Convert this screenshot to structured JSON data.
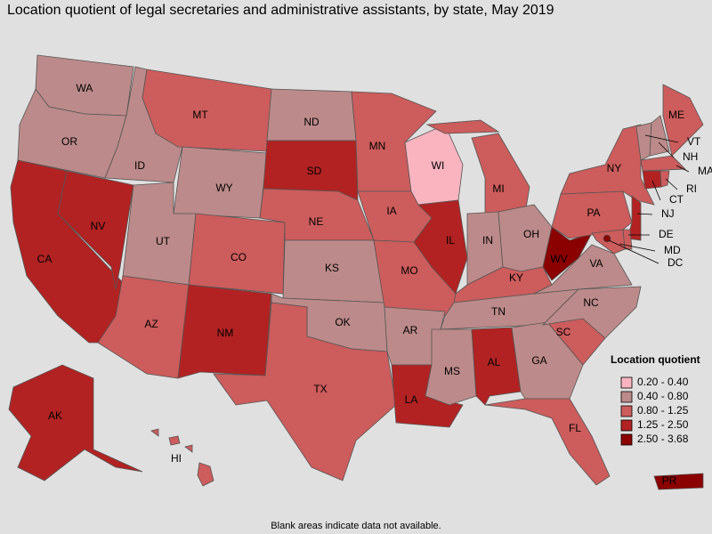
{
  "title": "Location quotient of legal secretaries and administrative assistants, by state, May 2019",
  "legend": {
    "title": "Location quotient",
    "items": [
      {
        "label": "0.20 - 0.40",
        "color": "#f9b4c0"
      },
      {
        "label": "0.40 - 0.80",
        "color": "#bc8a8a"
      },
      {
        "label": "0.80 - 1.25",
        "color": "#cd5c5c"
      },
      {
        "label": "1.25 - 2.50",
        "color": "#b22222"
      },
      {
        "label": "2.50 - 3.68",
        "color": "#8b0000"
      }
    ]
  },
  "states": [
    {
      "abbr": "WA",
      "color": "#bc8a8a"
    },
    {
      "abbr": "OR",
      "color": "#bc8a8a"
    },
    {
      "abbr": "CA",
      "color": "#b22222"
    },
    {
      "abbr": "NV",
      "color": "#b22222"
    },
    {
      "abbr": "ID",
      "color": "#bc8a8a"
    },
    {
      "abbr": "MT",
      "color": "#cd5c5c"
    },
    {
      "abbr": "WY",
      "color": "#bc8a8a"
    },
    {
      "abbr": "UT",
      "color": "#bc8a8a"
    },
    {
      "abbr": "AZ",
      "color": "#cd5c5c"
    },
    {
      "abbr": "CO",
      "color": "#cd5c5c"
    },
    {
      "abbr": "NM",
      "color": "#b22222"
    },
    {
      "abbr": "ND",
      "color": "#bc8a8a"
    },
    {
      "abbr": "SD",
      "color": "#b22222"
    },
    {
      "abbr": "NE",
      "color": "#cd5c5c"
    },
    {
      "abbr": "KS",
      "color": "#bc8a8a"
    },
    {
      "abbr": "OK",
      "color": "#bc8a8a"
    },
    {
      "abbr": "TX",
      "color": "#cd5c5c"
    },
    {
      "abbr": "MN",
      "color": "#cd5c5c"
    },
    {
      "abbr": "IA",
      "color": "#cd5c5c"
    },
    {
      "abbr": "MO",
      "color": "#cd5c5c"
    },
    {
      "abbr": "AR",
      "color": "#bc8a8a"
    },
    {
      "abbr": "LA",
      "color": "#b22222"
    },
    {
      "abbr": "WI",
      "color": "#f9b4c0"
    },
    {
      "abbr": "IL",
      "color": "#b22222"
    },
    {
      "abbr": "MI",
      "color": "#cd5c5c"
    },
    {
      "abbr": "IN",
      "color": "#bc8a8a"
    },
    {
      "abbr": "OH",
      "color": "#bc8a8a"
    },
    {
      "abbr": "KY",
      "color": "#cd5c5c"
    },
    {
      "abbr": "TN",
      "color": "#bc8a8a"
    },
    {
      "abbr": "MS",
      "color": "#bc8a8a"
    },
    {
      "abbr": "AL",
      "color": "#b22222"
    },
    {
      "abbr": "GA",
      "color": "#bc8a8a"
    },
    {
      "abbr": "FL",
      "color": "#cd5c5c"
    },
    {
      "abbr": "SC",
      "color": "#cd5c5c"
    },
    {
      "abbr": "NC",
      "color": "#bc8a8a"
    },
    {
      "abbr": "VA",
      "color": "#bc8a8a"
    },
    {
      "abbr": "WV",
      "color": "#8b0000"
    },
    {
      "abbr": "PA",
      "color": "#cd5c5c"
    },
    {
      "abbr": "NY",
      "color": "#cd5c5c"
    },
    {
      "abbr": "ME",
      "color": "#cd5c5c"
    },
    {
      "abbr": "VT",
      "color": "#bc8a8a"
    },
    {
      "abbr": "NH",
      "color": "#bc8a8a"
    },
    {
      "abbr": "MA",
      "color": "#cd5c5c"
    },
    {
      "abbr": "CT",
      "color": "#b22222"
    },
    {
      "abbr": "RI",
      "color": "#cd5c5c"
    },
    {
      "abbr": "NJ",
      "color": "#b22222"
    },
    {
      "abbr": "DE",
      "color": "#cd5c5c"
    },
    {
      "abbr": "MD",
      "color": "#cd5c5c"
    },
    {
      "abbr": "DC",
      "color": "#8b0000"
    },
    {
      "abbr": "AK",
      "color": "#b22222"
    },
    {
      "abbr": "HI",
      "color": "#cd5c5c"
    },
    {
      "abbr": "PR",
      "color": "#8b0000"
    }
  ],
  "footnote": "Blank areas indicate data not available."
}
